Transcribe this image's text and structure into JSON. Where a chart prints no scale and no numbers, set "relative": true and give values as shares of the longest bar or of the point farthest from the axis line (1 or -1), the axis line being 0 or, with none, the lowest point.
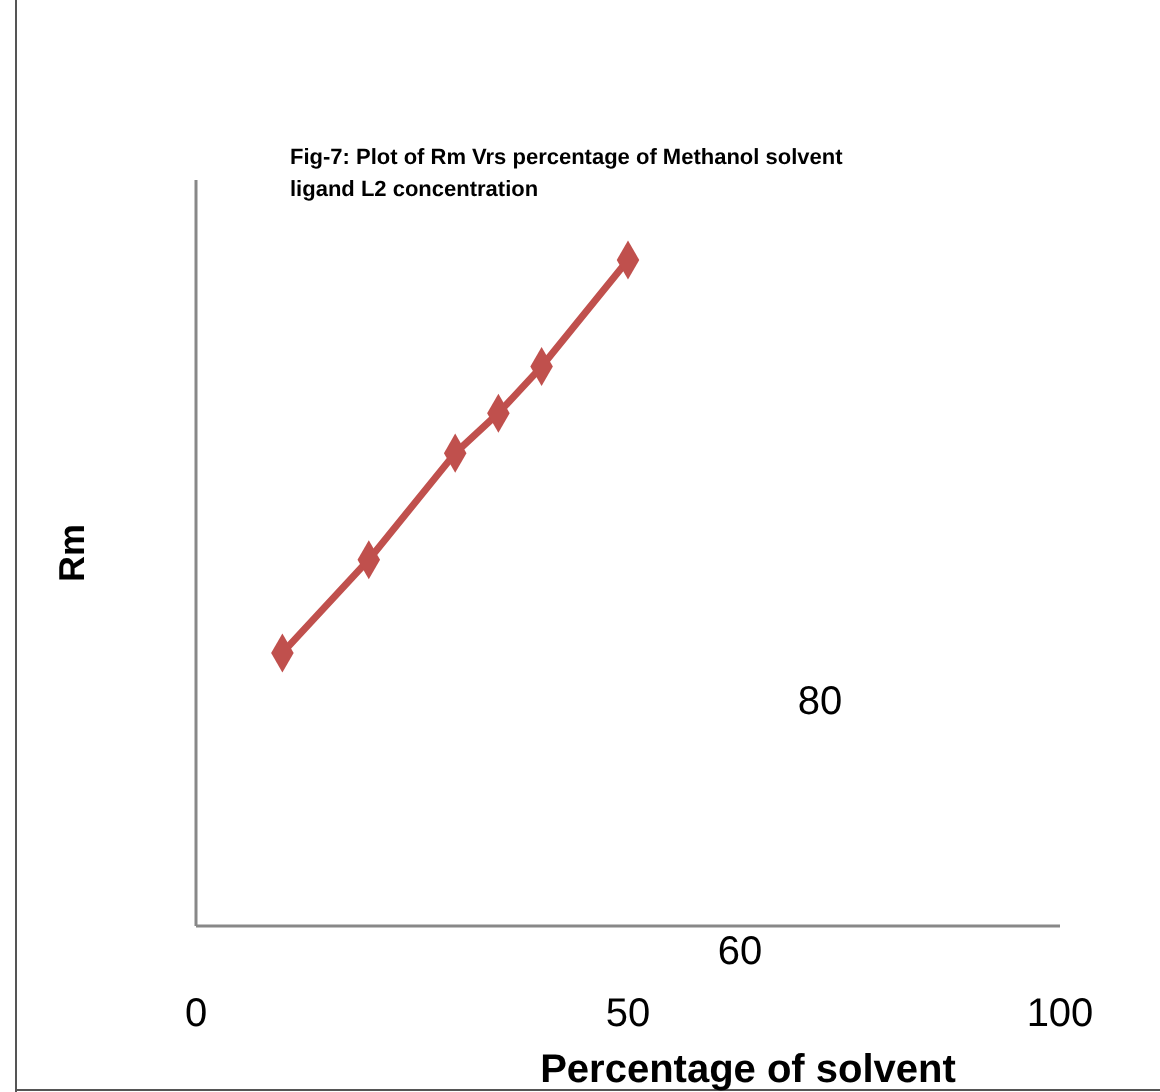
{
  "chart_data": {
    "type": "line",
    "title": "Fig-7: Plot of Rm Vrs percentage of Methanol solvent\nligand L2 concentration",
    "xlabel": "Percentage of solvent",
    "ylabel": "Rm",
    "x": [
      10,
      20,
      30,
      35,
      40,
      50
    ],
    "xlim": [
      0,
      100
    ],
    "xticks": [
      0,
      50,
      100
    ],
    "relative": true,
    "series": [
      {
        "color": "#c0504d",
        "values": [
          0.41,
          0.55,
          0.71,
          0.77,
          0.84,
          1.0
        ]
      }
    ],
    "marker": "diamond",
    "line_style": "solid",
    "grid": false,
    "annotations": [
      "80",
      "60"
    ]
  }
}
